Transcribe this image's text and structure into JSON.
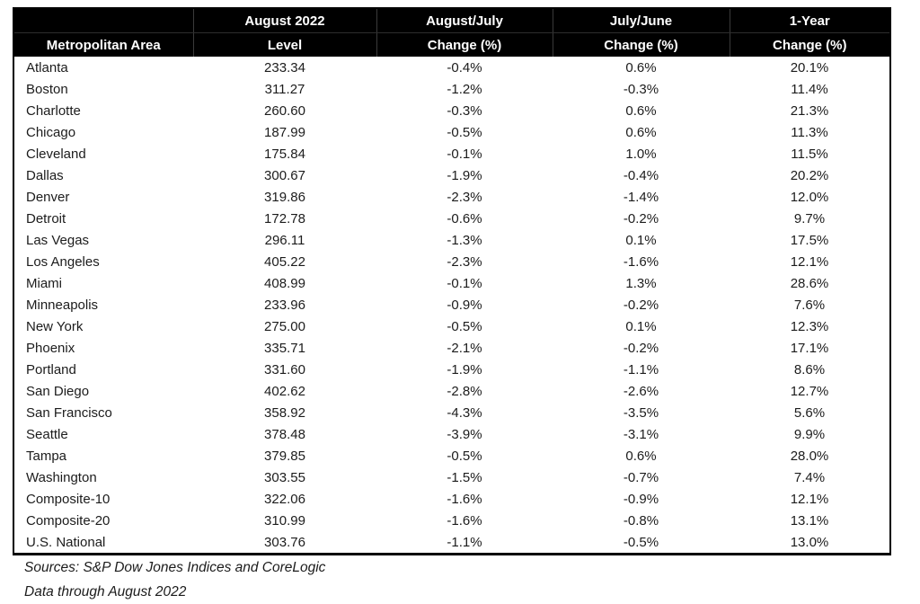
{
  "chart_data": {
    "type": "table",
    "columns": [
      {
        "line1": "",
        "line2": "Metropolitan Area"
      },
      {
        "line1": "August 2022",
        "line2": "Level"
      },
      {
        "line1": "August/July",
        "line2": "Change (%)"
      },
      {
        "line1": "July/June",
        "line2": "Change (%)"
      },
      {
        "line1": "1-Year",
        "line2": "Change (%)"
      }
    ],
    "rows": [
      [
        "Atlanta",
        "233.34",
        "-0.4%",
        "0.6%",
        "20.1%"
      ],
      [
        "Boston",
        "311.27",
        "-1.2%",
        "-0.3%",
        "11.4%"
      ],
      [
        "Charlotte",
        "260.60",
        "-0.3%",
        "0.6%",
        "21.3%"
      ],
      [
        "Chicago",
        "187.99",
        "-0.5%",
        "0.6%",
        "11.3%"
      ],
      [
        "Cleveland",
        "175.84",
        "-0.1%",
        "1.0%",
        "11.5%"
      ],
      [
        "Dallas",
        "300.67",
        "-1.9%",
        "-0.4%",
        "20.2%"
      ],
      [
        "Denver",
        "319.86",
        "-2.3%",
        "-1.4%",
        "12.0%"
      ],
      [
        "Detroit",
        "172.78",
        "-0.6%",
        "-0.2%",
        "9.7%"
      ],
      [
        "Las Vegas",
        "296.11",
        "-1.3%",
        "0.1%",
        "17.5%"
      ],
      [
        "Los Angeles",
        "405.22",
        "-2.3%",
        "-1.6%",
        "12.1%"
      ],
      [
        "Miami",
        "408.99",
        "-0.1%",
        "1.3%",
        "28.6%"
      ],
      [
        "Minneapolis",
        "233.96",
        "-0.9%",
        "-0.2%",
        "7.6%"
      ],
      [
        "New York",
        "275.00",
        "-0.5%",
        "0.1%",
        "12.3%"
      ],
      [
        "Phoenix",
        "335.71",
        "-2.1%",
        "-0.2%",
        "17.1%"
      ],
      [
        "Portland",
        "331.60",
        "-1.9%",
        "-1.1%",
        "8.6%"
      ],
      [
        "San Diego",
        "402.62",
        "-2.8%",
        "-2.6%",
        "12.7%"
      ],
      [
        "San Francisco",
        "358.92",
        "-4.3%",
        "-3.5%",
        "5.6%"
      ],
      [
        "Seattle",
        "378.48",
        "-3.9%",
        "-3.1%",
        "9.9%"
      ],
      [
        "Tampa",
        "379.85",
        "-0.5%",
        "0.6%",
        "28.0%"
      ],
      [
        "Washington",
        "303.55",
        "-1.5%",
        "-0.7%",
        "7.4%"
      ],
      [
        "Composite-10",
        "322.06",
        "-1.6%",
        "-0.9%",
        "12.1%"
      ],
      [
        "Composite-20",
        "310.99",
        "-1.6%",
        "-0.8%",
        "13.1%"
      ],
      [
        "U.S. National",
        "303.76",
        "-1.1%",
        "-0.5%",
        "13.0%"
      ]
    ]
  },
  "footer": {
    "sources_line": "Sources: S&P Dow Jones Indices and CoreLogic",
    "data_through_line": "Data through August 2022"
  },
  "colors": {
    "header_bg": "#000000",
    "header_text": "#ffffff",
    "body_text": "#1c1c1c",
    "border": "#000000"
  }
}
